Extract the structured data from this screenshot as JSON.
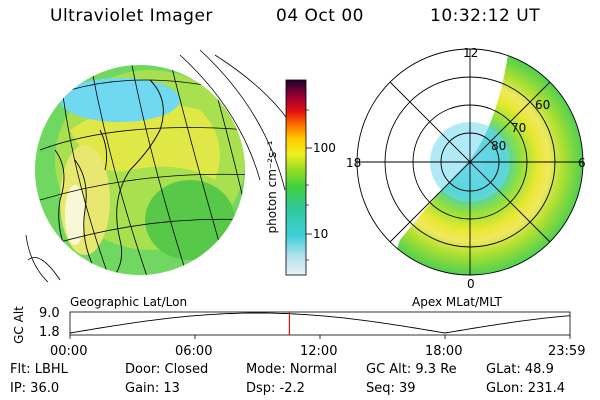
{
  "header": {
    "title": "Ultraviolet Imager",
    "date": "04 Oct 00",
    "time": "10:32:12 UT"
  },
  "left_panel": {
    "caption": "Geographic Lat/Lon"
  },
  "right_panel": {
    "caption": "Apex  MLat/MLT",
    "mlt_labels": {
      "top": "12",
      "left": "18",
      "right": "6",
      "bottom": "0"
    },
    "lat_labels": [
      "80",
      "70",
      "60"
    ]
  },
  "colorbar": {
    "unit_label": "photon cm⁻²s⁻¹",
    "ticks": [
      "100",
      "10"
    ]
  },
  "timeline": {
    "axis_label": "GC Alt",
    "y_max": "9.0",
    "y_min": "1.8",
    "x_ticks": [
      "00:00",
      "06:00",
      "12:00",
      "18:00",
      "23:59"
    ],
    "marker_time": "10:32",
    "marker_color": "#e01010"
  },
  "footer": {
    "flt": "Flt: LBHL",
    "ip": "IP: 36.0",
    "door": "Door: Closed",
    "gain": "Gain: 13",
    "mode": "Mode: Normal",
    "dsp": "Dsp:    -2.2",
    "gc_alt": "GC Alt: 9.3 Re",
    "seq": "Seq: 39",
    "glat": "GLat:   48.9",
    "glon": "GLon: 231.4"
  }
}
